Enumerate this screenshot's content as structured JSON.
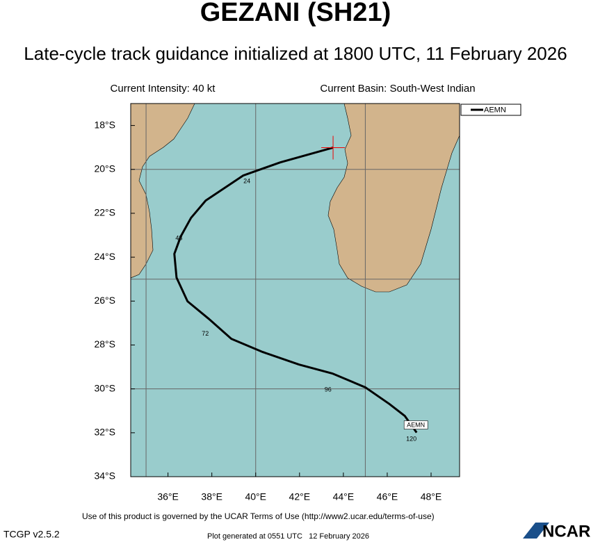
{
  "chart_data": {
    "type": "track_map",
    "title": "GEZANI (SH21)",
    "subtitle": "Late-cycle track guidance initialized at 1800 UTC, 11 February 2026",
    "intensity": "Current Intensity: 40 kt",
    "basin": "Current Basin: South-West Indian",
    "xlim": [
      34.3,
      49.3
    ],
    "ylim": [
      -34,
      -17
    ],
    "xticks": [
      {
        "value": 36,
        "label": "36°E"
      },
      {
        "value": 38,
        "label": "38°E"
      },
      {
        "value": 40,
        "label": "40°E"
      },
      {
        "value": 42,
        "label": "42°E"
      },
      {
        "value": 44,
        "label": "44°E"
      },
      {
        "value": 46,
        "label": "46°E"
      },
      {
        "value": 48,
        "label": "48°E"
      }
    ],
    "yticks": [
      {
        "value": -18,
        "label": "18°S"
      },
      {
        "value": -20,
        "label": "20°S"
      },
      {
        "value": -22,
        "label": "22°S"
      },
      {
        "value": -24,
        "label": "24°S"
      },
      {
        "value": -26,
        "label": "26°S"
      },
      {
        "value": -28,
        "label": "28°S"
      },
      {
        "value": -30,
        "label": "30°S"
      },
      {
        "value": -32,
        "label": "32°S"
      },
      {
        "value": -34,
        "label": "34°S"
      }
    ],
    "xgrid": [
      35,
      40,
      45
    ],
    "ygrid": [
      -20,
      -25,
      -30
    ],
    "series": [
      {
        "name": "AEMN",
        "color": "#000000",
        "lon": [
          43.53,
          41.12,
          39.43,
          37.72,
          37.05,
          36.58,
          36.29,
          36.39,
          36.89,
          37.85,
          38.89,
          40.32,
          41.97,
          43.5,
          45.0,
          46.1,
          46.8,
          47.34
        ],
        "lat": [
          -19.01,
          -19.68,
          -20.28,
          -21.42,
          -22.21,
          -23.06,
          -23.85,
          -24.93,
          -26.01,
          -26.8,
          -27.72,
          -28.32,
          -28.89,
          -29.3,
          -29.93,
          -30.69,
          -31.23,
          -31.99
        ]
      }
    ],
    "annotations": [
      {
        "text": "24",
        "lon": 39.6,
        "lat": -20.55
      },
      {
        "text": "48",
        "lon": 36.5,
        "lat": -23.15
      },
      {
        "text": "72",
        "lon": 37.7,
        "lat": -27.5
      },
      {
        "text": "96",
        "lon": 43.3,
        "lat": -30.04
      },
      {
        "text": "120",
        "lon": 47.1,
        "lat": -32.3
      }
    ],
    "track_label": "AEMN",
    "terms": "Use of this product is governed by the UCAR Terms of Use (http://www2.ucar.edu/terms-of-use)",
    "version": "TCGP v2.5.2",
    "generated": "Plot generated at 0551 UTC   12 February 2026",
    "logo": "NCAR"
  }
}
